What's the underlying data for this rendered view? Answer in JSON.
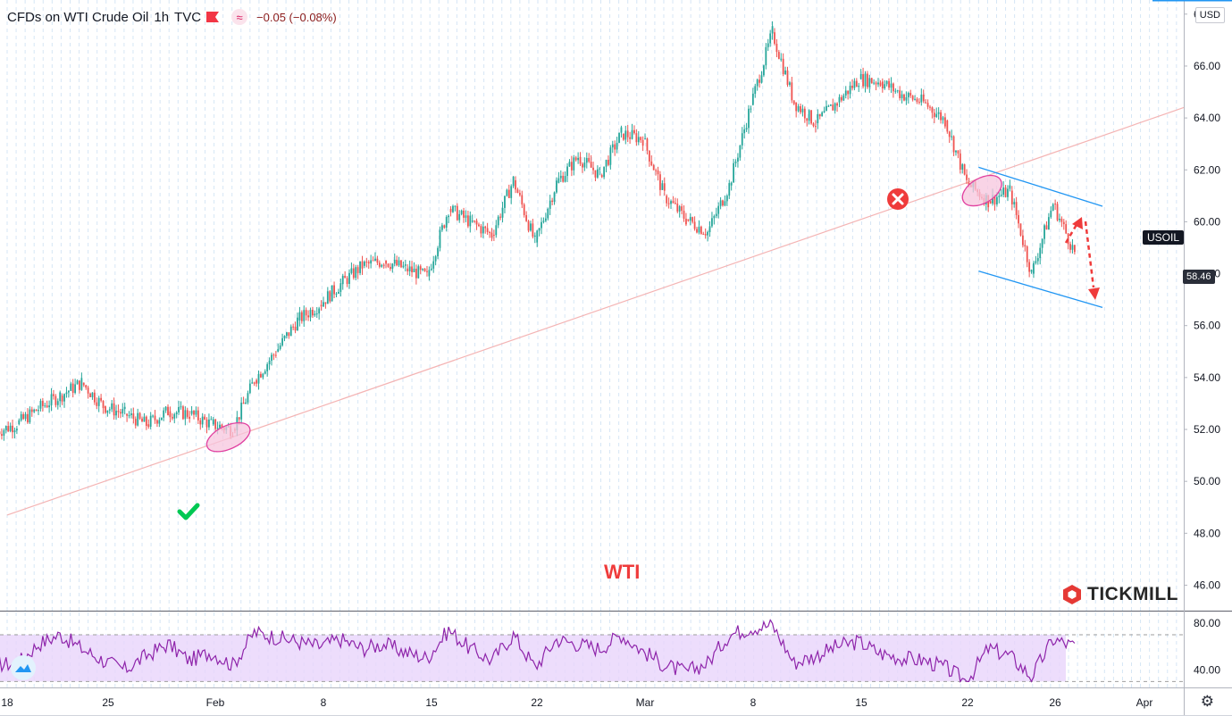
{
  "header": {
    "symbol": "CFDs on WTI Crude Oil",
    "interval": "1h",
    "source": "TVC",
    "change": "−0.05 (−0.08%)"
  },
  "currency_label": "USD",
  "price_tags": {
    "symbol_tag": "USOIL",
    "last_price": "58.46"
  },
  "annotations": {
    "chart_label": "WTI",
    "brand": "TICKMILL"
  },
  "colors": {
    "up": "#26a69a",
    "down": "#ef5350",
    "trendline": "#f4b4b4",
    "channel": "#2196f3",
    "rsi": "#8e24aa",
    "rsi_band": "#e8d5fb",
    "ellipse_fill": "#f7c6de",
    "ellipse_stroke": "#e040a0",
    "check": "#00c853",
    "cross": "#ef3b3b",
    "arrow": "#ef3b3b",
    "wti_text": "#ef3b3b"
  },
  "chart_data": [
    {
      "type": "line",
      "subtype": "candlestick-approx",
      "title": "CFDs on WTI Crude Oil",
      "x_ticks": [
        "18",
        "25",
        "Feb",
        "8",
        "15",
        "22",
        "Mar",
        "8",
        "15",
        "22",
        "26",
        "Apr"
      ],
      "y_ticks": [
        "46.00",
        "48.00",
        "50.00",
        "52.00",
        "54.00",
        "56.00",
        "58.00",
        "60.00",
        "62.00",
        "64.00",
        "66.00",
        "68.00"
      ],
      "ylim": [
        45.5,
        68.2
      ],
      "series": [
        {
          "x": [
            "Jan 18",
            "Jan 19",
            "Jan 20",
            "Jan 21",
            "Jan 22",
            "Jan 25",
            "Jan 26",
            "Jan 27",
            "Jan 28",
            "Jan 29",
            "Feb 1",
            "Feb 2",
            "Feb 3",
            "Feb 4",
            "Feb 5",
            "Feb 8",
            "Feb 9",
            "Feb 10",
            "Feb 11",
            "Feb 12",
            "Feb 15",
            "Feb 16",
            "Feb 17",
            "Feb 18",
            "Feb 19",
            "Feb 22",
            "Feb 23",
            "Feb 24",
            "Feb 25",
            "Feb 26",
            "Mar 1",
            "Mar 2",
            "Mar 3",
            "Mar 4",
            "Mar 5",
            "Mar 8",
            "Mar 9",
            "Mar 10",
            "Mar 11",
            "Mar 12",
            "Mar 15",
            "Mar 16",
            "Mar 17",
            "Mar 18",
            "Mar 19",
            "Mar 22",
            "Mar 23",
            "Mar 24",
            "Mar 25",
            "Mar 26"
          ],
          "values": [
            52.2,
            52.8,
            53.3,
            53.8,
            52.9,
            52.6,
            52.2,
            52.7,
            52.6,
            52.2,
            52.0,
            53.9,
            55.0,
            56.2,
            56.8,
            57.6,
            58.3,
            58.5,
            58.2,
            57.9,
            60.5,
            60.0,
            59.5,
            61.6,
            59.2,
            61.5,
            62.5,
            61.8,
            63.4,
            63.2,
            61.0,
            60.1,
            59.6,
            61.4,
            64.5,
            67.3,
            64.6,
            63.8,
            64.6,
            65.5,
            65.4,
            64.9,
            64.6,
            63.9,
            61.5,
            60.8,
            61.2,
            58.0,
            60.7,
            58.8
          ],
          "name": ""
        }
      ],
      "annotations": {
        "trendline": {
          "from": [
            "Jan 18",
            48.7
          ],
          "to": [
            "Mar 31",
            64.4
          ]
        },
        "channel_upper": {
          "from": [
            "Mar 22",
            62.1
          ],
          "to": [
            "Mar 29",
            60.6
          ]
        },
        "channel_lower": {
          "from": [
            "Mar 22",
            58.1
          ],
          "to": [
            "Mar 29",
            56.7
          ]
        }
      }
    },
    {
      "type": "line",
      "title": "",
      "y_ticks": [
        "40.00",
        "80.00"
      ],
      "ylim": [
        28,
        86
      ],
      "band": [
        30,
        70
      ],
      "series": [
        {
          "x": [
            "Jan 18",
            "Jan 19",
            "Jan 20",
            "Jan 21",
            "Jan 22",
            "Jan 25",
            "Jan 26",
            "Jan 27",
            "Jan 28",
            "Jan 29",
            "Feb 1",
            "Feb 2",
            "Feb 3",
            "Feb 4",
            "Feb 5",
            "Feb 8",
            "Feb 9",
            "Feb 10",
            "Feb 11",
            "Feb 12",
            "Feb 15",
            "Feb 16",
            "Feb 17",
            "Feb 18",
            "Feb 19",
            "Feb 22",
            "Feb 23",
            "Feb 24",
            "Feb 25",
            "Feb 26",
            "Mar 1",
            "Mar 2",
            "Mar 3",
            "Mar 4",
            "Mar 5",
            "Mar 8",
            "Mar 9",
            "Mar 10",
            "Mar 11",
            "Mar 12",
            "Mar 15",
            "Mar 16",
            "Mar 17",
            "Mar 18",
            "Mar 19",
            "Mar 22",
            "Mar 23",
            "Mar 24",
            "Mar 25",
            "Mar 26"
          ],
          "values": [
            45,
            62,
            70,
            58,
            48,
            40,
            52,
            62,
            48,
            55,
            44,
            72,
            68,
            64,
            60,
            66,
            58,
            62,
            55,
            50,
            74,
            58,
            48,
            70,
            42,
            66,
            62,
            58,
            70,
            56,
            44,
            38,
            46,
            70,
            76,
            78,
            46,
            52,
            60,
            64,
            54,
            50,
            48,
            42,
            30,
            58,
            52,
            34,
            66,
            60
          ],
          "name": ""
        }
      ]
    }
  ]
}
